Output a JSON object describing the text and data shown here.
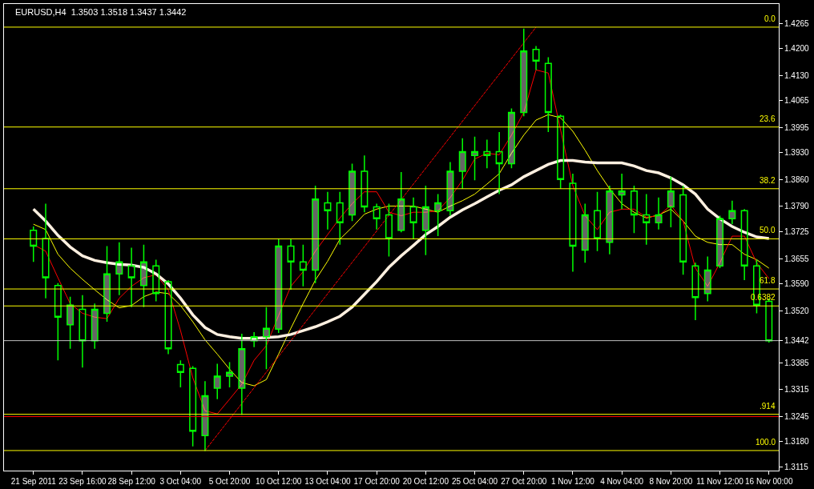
{
  "chart_data": {
    "type": "candlestick",
    "title": "EURUSD,H4  1.3503 1.3518 1.3437 1.3442",
    "color": "#00ff00",
    "categories": [
      "21 Sep 2011",
      null,
      null,
      null,
      "23 Sep 16:00",
      null,
      null,
      null,
      "28 Sep 12:00",
      null,
      null,
      null,
      "3 Oct 04:00",
      null,
      null,
      null,
      "5 Oct 20:00",
      null,
      null,
      null,
      "10 Oct 12:00",
      null,
      null,
      null,
      "13 Oct 04:00",
      null,
      null,
      null,
      "17 Oct 20:00",
      null,
      null,
      null,
      "20 Oct 12:00",
      null,
      null,
      null,
      "25 Oct 04:00",
      null,
      null,
      null,
      "27 Oct 20:00",
      null,
      null,
      null,
      "1 Nov 12:00",
      null,
      null,
      null,
      "4 Nov 04:00",
      null,
      null,
      null,
      "8 Nov 20:00",
      null,
      null,
      null,
      "11 Nov 12:00",
      null,
      null,
      null,
      "16 Nov 00:00"
    ],
    "ohlc": [
      [
        1.3728,
        1.3738,
        1.3646,
        1.3687
      ],
      [
        1.3707,
        1.3797,
        1.3552,
        1.3605
      ],
      [
        1.3585,
        1.3591,
        1.3391,
        1.3503
      ],
      [
        1.3483,
        1.3556,
        1.3421,
        1.3534
      ],
      [
        1.3523,
        1.356,
        1.3372,
        1.3442
      ],
      [
        1.3442,
        1.3538,
        1.3421,
        1.3523
      ],
      [
        1.3513,
        1.3687,
        1.3491,
        1.3615
      ],
      [
        1.3615,
        1.3697,
        1.356,
        1.3646
      ],
      [
        1.3636,
        1.3683,
        1.3529,
        1.3605
      ],
      [
        1.3585,
        1.3691,
        1.3529,
        1.3646
      ],
      [
        1.3636,
        1.3652,
        1.3544,
        1.3564
      ],
      [
        1.3595,
        1.3599,
        1.3407,
        1.3421
      ],
      [
        1.338,
        1.3391,
        1.3321,
        1.336
      ],
      [
        1.337,
        1.3376,
        1.3168,
        1.3207
      ],
      [
        1.3196,
        1.3337,
        1.3156,
        1.3299
      ],
      [
        1.3319,
        1.3382,
        1.329,
        1.335
      ],
      [
        1.335,
        1.3386,
        1.3321,
        1.336
      ],
      [
        1.3319,
        1.346,
        1.325,
        1.3421
      ],
      [
        1.3442,
        1.3464,
        1.3425,
        1.3452
      ],
      [
        1.3452,
        1.3529,
        1.3368,
        1.3474
      ],
      [
        1.3472,
        1.3707,
        1.3462,
        1.3687
      ],
      [
        1.3687,
        1.3705,
        1.3574,
        1.3646
      ],
      [
        1.3646,
        1.3691,
        1.3583,
        1.3625
      ],
      [
        1.3625,
        1.3844,
        1.3591,
        1.3809
      ],
      [
        1.3799,
        1.3828,
        1.373,
        1.3779
      ],
      [
        1.3799,
        1.3828,
        1.3691,
        1.3748
      ],
      [
        1.3768,
        1.3901,
        1.3752,
        1.3881
      ],
      [
        1.3881,
        1.3922,
        1.3775,
        1.3789
      ],
      [
        1.3789,
        1.3797,
        1.373,
        1.3758
      ],
      [
        1.3768,
        1.3797,
        1.366,
        1.3707
      ],
      [
        1.3728,
        1.3879,
        1.3723,
        1.3809
      ],
      [
        1.3789,
        1.3813,
        1.3705,
        1.3748
      ],
      [
        1.3728,
        1.3844,
        1.3664,
        1.3789
      ],
      [
        1.3779,
        1.3822,
        1.3713,
        1.3799
      ],
      [
        1.3779,
        1.3905,
        1.3766,
        1.3881
      ],
      [
        1.3881,
        1.3967,
        1.3836,
        1.3932
      ],
      [
        1.3922,
        1.3971,
        1.3858,
        1.3932
      ],
      [
        1.3932,
        1.3963,
        1.3889,
        1.3922
      ],
      [
        1.3932,
        1.3983,
        1.3822,
        1.3901
      ],
      [
        1.3901,
        1.4044,
        1.3889,
        1.4034
      ],
      [
        1.4034,
        1.4251,
        1.4024,
        1.4193
      ],
      [
        1.4197,
        1.4206,
        1.4144,
        1.4167
      ],
      [
        1.4161,
        1.4177,
        1.3983,
        1.4034
      ],
      [
        1.4024,
        1.4028,
        1.3836,
        1.386
      ],
      [
        1.385,
        1.3875,
        1.3621,
        1.3687
      ],
      [
        1.3677,
        1.3797,
        1.3644,
        1.3768
      ],
      [
        1.3779,
        1.3828,
        1.3674,
        1.3707
      ],
      [
        1.3697,
        1.3844,
        1.3666,
        1.383
      ],
      [
        1.382,
        1.3875,
        1.3783,
        1.383
      ],
      [
        1.383,
        1.3844,
        1.3721,
        1.3768
      ],
      [
        1.3768,
        1.3822,
        1.3691,
        1.3748
      ],
      [
        1.3748,
        1.3813,
        1.373,
        1.3768
      ],
      [
        1.3789,
        1.3867,
        1.3736,
        1.383
      ],
      [
        1.382,
        1.3844,
        1.3613,
        1.3646
      ],
      [
        1.3636,
        1.3644,
        1.3495,
        1.3554
      ],
      [
        1.3564,
        1.366,
        1.3544,
        1.3625
      ],
      [
        1.3636,
        1.3766,
        1.363,
        1.3758
      ],
      [
        1.3758,
        1.3805,
        1.3744,
        1.3779
      ],
      [
        1.3779,
        1.3783,
        1.3599,
        1.3636
      ],
      [
        1.3636,
        1.3652,
        1.3513,
        1.3534
      ],
      [
        1.3544,
        1.3552,
        1.3437,
        1.3442
      ]
    ],
    "series": [
      {
        "type": "line",
        "color": "#ffff00",
        "values": [
          1.3744,
          1.373,
          1.3666,
          1.363,
          1.3601,
          1.3574,
          1.3548,
          1.3527,
          1.3533,
          1.3556,
          1.3568,
          1.3564,
          1.3533,
          1.3491,
          1.3444,
          1.3407,
          1.3368,
          1.3333,
          1.3325,
          1.3341,
          1.3407,
          1.3474,
          1.3538,
          1.3599,
          1.3648,
          1.3705,
          1.3736,
          1.377,
          1.3783,
          1.3791,
          1.3791,
          1.3791,
          1.3783,
          1.3775,
          1.3791,
          1.3805,
          1.3822,
          1.3848,
          1.3875,
          1.3928,
          1.3975,
          1.4014,
          1.4028,
          1.402,
          1.3985,
          1.3936,
          1.3883,
          1.3836,
          1.3797,
          1.3775,
          1.376,
          1.3768,
          1.3783,
          1.3752,
          1.3713,
          1.3697,
          1.3691,
          1.3691,
          1.3666,
          1.3652,
          1.363
        ]
      },
      {
        "type": "line",
        "color": "#ff0000",
        "values": [
          1.3691,
          1.3674,
          1.3605,
          1.3538,
          1.3513,
          1.3503,
          1.3499,
          1.3552,
          1.3583,
          1.3605,
          1.3613,
          1.3574,
          1.3468,
          1.3346,
          1.326,
          1.3252,
          1.329,
          1.3329,
          1.3391,
          1.3429,
          1.3507,
          1.3583,
          1.3621,
          1.3674,
          1.3717,
          1.376,
          1.3797,
          1.3828,
          1.3828,
          1.3775,
          1.3766,
          1.3775,
          1.3775,
          1.3779,
          1.3813,
          1.3858,
          1.3913,
          1.3928,
          1.3924,
          1.3975,
          1.4034,
          1.4144,
          1.4136,
          1.3989,
          1.3844,
          1.3766,
          1.373,
          1.3775,
          1.3783,
          1.3783,
          1.3762,
          1.3766,
          1.3793,
          1.3752,
          1.363,
          1.3583,
          1.3644,
          1.3713,
          1.3713,
          1.3644,
          1.3603
        ]
      },
      {
        "type": "line",
        "color": "#fff0e0",
        "values": [
          1.3783,
          1.3752,
          1.3715,
          1.3685,
          1.3662,
          1.365,
          1.3644,
          1.364,
          1.3638,
          1.3632,
          1.3615,
          1.3589,
          1.3552,
          1.3509,
          1.3476,
          1.3458,
          1.3452,
          1.3448,
          1.3448,
          1.345,
          1.3452,
          1.3458,
          1.3468,
          1.3478,
          1.3491,
          1.3505,
          1.3529,
          1.3562,
          1.3595,
          1.3632,
          1.3662,
          1.3689,
          1.3717,
          1.3738,
          1.3762,
          1.3781,
          1.3797,
          1.3815,
          1.3832,
          1.3846,
          1.3867,
          1.3883,
          1.3899,
          1.3909,
          1.3909,
          1.3905,
          1.3903,
          1.3903,
          1.3903,
          1.3895,
          1.3883,
          1.3877,
          1.3864,
          1.3846,
          1.3822,
          1.3783,
          1.3758,
          1.3738,
          1.3723,
          1.3711,
          1.3707
        ]
      },
      {
        "type": "line",
        "color": "#ff0000",
        "line_style": "dashed",
        "values": [
          null,
          null,
          null,
          null,
          null,
          null,
          null,
          null,
          null,
          null,
          null,
          null,
          null,
          null,
          1.3157,
          null,
          null,
          null,
          null,
          null,
          null,
          null,
          null,
          null,
          null,
          null,
          null,
          null,
          null,
          null,
          null,
          null,
          null,
          null,
          null,
          null,
          null,
          null,
          null,
          null,
          null,
          1.4255,
          null,
          null,
          null,
          null,
          null,
          null,
          null,
          null,
          null,
          null,
          null,
          null,
          null,
          null,
          null,
          null,
          null,
          null,
          null
        ]
      }
    ],
    "ref_lines": [
      {
        "axis": "y",
        "value": 1.4255,
        "color": "#ffff00"
      },
      {
        "axis": "y",
        "value": 1.3996,
        "color": "#ffff00"
      },
      {
        "axis": "y",
        "value": 1.3836,
        "color": "#ffff00"
      },
      {
        "axis": "y",
        "value": 1.3706,
        "color": "#ffff00"
      },
      {
        "axis": "y",
        "value": 1.3576,
        "color": "#ffff00"
      },
      {
        "axis": "y",
        "value": 1.3532,
        "color": "#ffff00"
      },
      {
        "axis": "y",
        "value": 1.3442,
        "color": "#c0c0c0"
      },
      {
        "axis": "y",
        "value": 1.3245,
        "color": "#ff0000"
      },
      {
        "axis": "y",
        "value": 1.3251,
        "color": "#ffff00"
      },
      {
        "axis": "y",
        "value": 1.3157,
        "color": "#ffff00"
      }
    ],
    "annotations": [
      {
        "text": "0.0",
        "y": 1.4255
      },
      {
        "text": "23.6",
        "y": 1.3996
      },
      {
        "text": "38.2",
        "y": 1.3836
      },
      {
        "text": "50.0",
        "y": 1.3706
      },
      {
        "text": "61.8",
        "y": 1.3576
      },
      {
        "text": "0.6382",
        "y": 1.3532
      },
      {
        "text": ".914",
        "y": 1.3251
      },
      {
        "text": "100.0",
        "y": 1.3157
      }
    ],
    "ylim": [
      1.3105,
      1.4315
    ],
    "yticks": [
      1.4265,
      {
        "value": 1.42,
        "label": "1.4200"
      },
      {
        "value": 1.413,
        "label": "1.4130"
      },
      1.4065,
      1.3995,
      {
        "value": 1.393,
        "label": "1.3930"
      },
      {
        "value": 1.386,
        "label": "1.3860"
      },
      {
        "value": 1.379,
        "label": "1.3790"
      },
      1.3725,
      1.3655,
      {
        "value": 1.359,
        "label": "1.3590"
      },
      {
        "value": 1.352,
        "label": "1.3520"
      },
      1.3442,
      1.3385,
      1.3315,
      1.3245,
      {
        "value": 1.318,
        "label": "1.3180"
      },
      1.3115
    ]
  }
}
